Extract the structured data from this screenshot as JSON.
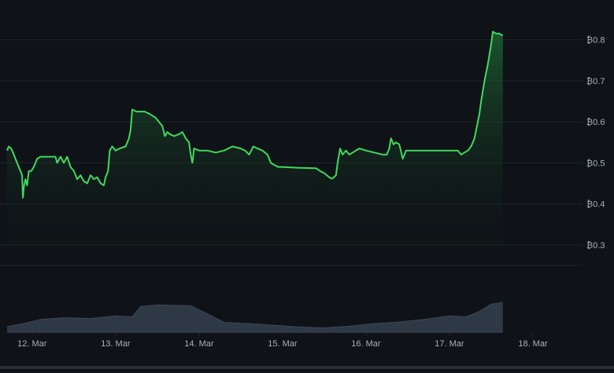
{
  "chart_data": {
    "type": "area",
    "currency_symbol": "₿",
    "colors": {
      "background": "#0f1317",
      "line": "#3fd95f",
      "fill_top": "#1f6b35",
      "grid": "#1f252b",
      "volume": "#2f3845",
      "volume_line": "#3d4757",
      "axis_text": "#a9b0b8"
    },
    "grid": true,
    "y_axis_side": "right",
    "ylim": [
      0.25,
      0.83
    ],
    "y_ticks": [
      {
        "value": 0.3,
        "label": "₿0.3"
      },
      {
        "value": 0.4,
        "label": "₿0.4"
      },
      {
        "value": 0.5,
        "label": "₿0.5"
      },
      {
        "value": 0.6,
        "label": "₿0.6"
      },
      {
        "value": 0.7,
        "label": "₿0.7"
      },
      {
        "value": 0.8,
        "label": "₿0.8"
      }
    ],
    "xlim": [
      11.7,
      18.5
    ],
    "x_ticks": [
      {
        "value": 12,
        "label": "12. Mar"
      },
      {
        "value": 13,
        "label": "13. Mar"
      },
      {
        "value": 14,
        "label": "14. Mar"
      },
      {
        "value": 15,
        "label": "15. Mar"
      },
      {
        "value": 16,
        "label": "16. Mar"
      },
      {
        "value": 17,
        "label": "17. Mar"
      },
      {
        "value": 18,
        "label": "18. Mar"
      }
    ],
    "series": [
      {
        "points": [
          [
            11.7,
            0.53
          ],
          [
            11.72,
            0.54
          ],
          [
            11.75,
            0.535
          ],
          [
            11.78,
            0.52
          ],
          [
            11.82,
            0.5
          ],
          [
            11.86,
            0.48
          ],
          [
            11.88,
            0.47
          ],
          [
            11.89,
            0.415
          ],
          [
            11.9,
            0.44
          ],
          [
            11.92,
            0.46
          ],
          [
            11.94,
            0.445
          ],
          [
            11.96,
            0.48
          ],
          [
            11.99,
            0.48
          ],
          [
            12.02,
            0.49
          ],
          [
            12.06,
            0.51
          ],
          [
            12.1,
            0.515
          ],
          [
            12.2,
            0.515
          ],
          [
            12.28,
            0.515
          ],
          [
            12.3,
            0.5
          ],
          [
            12.34,
            0.515
          ],
          [
            12.38,
            0.5
          ],
          [
            12.42,
            0.515
          ],
          [
            12.46,
            0.49
          ],
          [
            12.5,
            0.48
          ],
          [
            12.54,
            0.46
          ],
          [
            12.58,
            0.47
          ],
          [
            12.62,
            0.455
          ],
          [
            12.66,
            0.45
          ],
          [
            12.7,
            0.47
          ],
          [
            12.74,
            0.46
          ],
          [
            12.78,
            0.465
          ],
          [
            12.82,
            0.45
          ],
          [
            12.86,
            0.445
          ],
          [
            12.88,
            0.465
          ],
          [
            12.91,
            0.48
          ],
          [
            12.93,
            0.53
          ],
          [
            12.96,
            0.54
          ],
          [
            13.0,
            0.53
          ],
          [
            13.05,
            0.535
          ],
          [
            13.12,
            0.54
          ],
          [
            13.16,
            0.56
          ],
          [
            13.18,
            0.58
          ],
          [
            13.2,
            0.63
          ],
          [
            13.25,
            0.625
          ],
          [
            13.35,
            0.625
          ],
          [
            13.4,
            0.62
          ],
          [
            13.48,
            0.61
          ],
          [
            13.52,
            0.6
          ],
          [
            13.56,
            0.59
          ],
          [
            13.59,
            0.565
          ],
          [
            13.62,
            0.575
          ],
          [
            13.65,
            0.57
          ],
          [
            13.7,
            0.565
          ],
          [
            13.76,
            0.57
          ],
          [
            13.8,
            0.575
          ],
          [
            13.84,
            0.56
          ],
          [
            13.88,
            0.55
          ],
          [
            13.9,
            0.52
          ],
          [
            13.92,
            0.5
          ],
          [
            13.94,
            0.535
          ],
          [
            14.0,
            0.53
          ],
          [
            14.1,
            0.53
          ],
          [
            14.2,
            0.525
          ],
          [
            14.3,
            0.53
          ],
          [
            14.4,
            0.54
          ],
          [
            14.5,
            0.535
          ],
          [
            14.55,
            0.53
          ],
          [
            14.6,
            0.52
          ],
          [
            14.65,
            0.54
          ],
          [
            14.7,
            0.535
          ],
          [
            14.76,
            0.53
          ],
          [
            14.82,
            0.52
          ],
          [
            14.86,
            0.5
          ],
          [
            14.9,
            0.495
          ],
          [
            14.95,
            0.49
          ],
          [
            15.0,
            0.49
          ],
          [
            15.2,
            0.488
          ],
          [
            15.4,
            0.487
          ],
          [
            15.45,
            0.48
          ],
          [
            15.5,
            0.475
          ],
          [
            15.54,
            0.468
          ],
          [
            15.58,
            0.462
          ],
          [
            15.6,
            0.462
          ],
          [
            15.64,
            0.47
          ],
          [
            15.66,
            0.5
          ],
          [
            15.69,
            0.535
          ],
          [
            15.72,
            0.52
          ],
          [
            15.76,
            0.53
          ],
          [
            15.8,
            0.52
          ],
          [
            15.84,
            0.525
          ],
          [
            15.88,
            0.53
          ],
          [
            15.92,
            0.535
          ],
          [
            16.0,
            0.53
          ],
          [
            16.1,
            0.525
          ],
          [
            16.2,
            0.52
          ],
          [
            16.25,
            0.52
          ],
          [
            16.28,
            0.535
          ],
          [
            16.3,
            0.56
          ],
          [
            16.33,
            0.545
          ],
          [
            16.36,
            0.55
          ],
          [
            16.4,
            0.545
          ],
          [
            16.44,
            0.51
          ],
          [
            16.48,
            0.53
          ],
          [
            16.55,
            0.53
          ],
          [
            16.7,
            0.53
          ],
          [
            16.9,
            0.53
          ],
          [
            17.1,
            0.53
          ],
          [
            17.14,
            0.52
          ],
          [
            17.18,
            0.525
          ],
          [
            17.22,
            0.53
          ],
          [
            17.26,
            0.54
          ],
          [
            17.3,
            0.56
          ],
          [
            17.32,
            0.58
          ],
          [
            17.34,
            0.6
          ],
          [
            17.36,
            0.62
          ],
          [
            17.38,
            0.65
          ],
          [
            17.42,
            0.7
          ],
          [
            17.46,
            0.74
          ],
          [
            17.5,
            0.79
          ],
          [
            17.52,
            0.82
          ],
          [
            17.56,
            0.815
          ],
          [
            17.6,
            0.815
          ],
          [
            17.64,
            0.81
          ]
        ]
      }
    ],
    "volume": [
      [
        11.7,
        0.15
      ],
      [
        11.9,
        0.22
      ],
      [
        12.1,
        0.32
      ],
      [
        12.4,
        0.36
      ],
      [
        12.7,
        0.34
      ],
      [
        13.0,
        0.4
      ],
      [
        13.2,
        0.38
      ],
      [
        13.3,
        0.62
      ],
      [
        13.5,
        0.66
      ],
      [
        13.9,
        0.64
      ],
      [
        14.1,
        0.45
      ],
      [
        14.3,
        0.25
      ],
      [
        14.6,
        0.22
      ],
      [
        14.9,
        0.18
      ],
      [
        15.2,
        0.14
      ],
      [
        15.5,
        0.12
      ],
      [
        15.8,
        0.16
      ],
      [
        16.1,
        0.22
      ],
      [
        16.4,
        0.26
      ],
      [
        16.7,
        0.32
      ],
      [
        17.0,
        0.4
      ],
      [
        17.2,
        0.38
      ],
      [
        17.35,
        0.5
      ],
      [
        17.5,
        0.68
      ],
      [
        17.64,
        0.72
      ]
    ]
  }
}
